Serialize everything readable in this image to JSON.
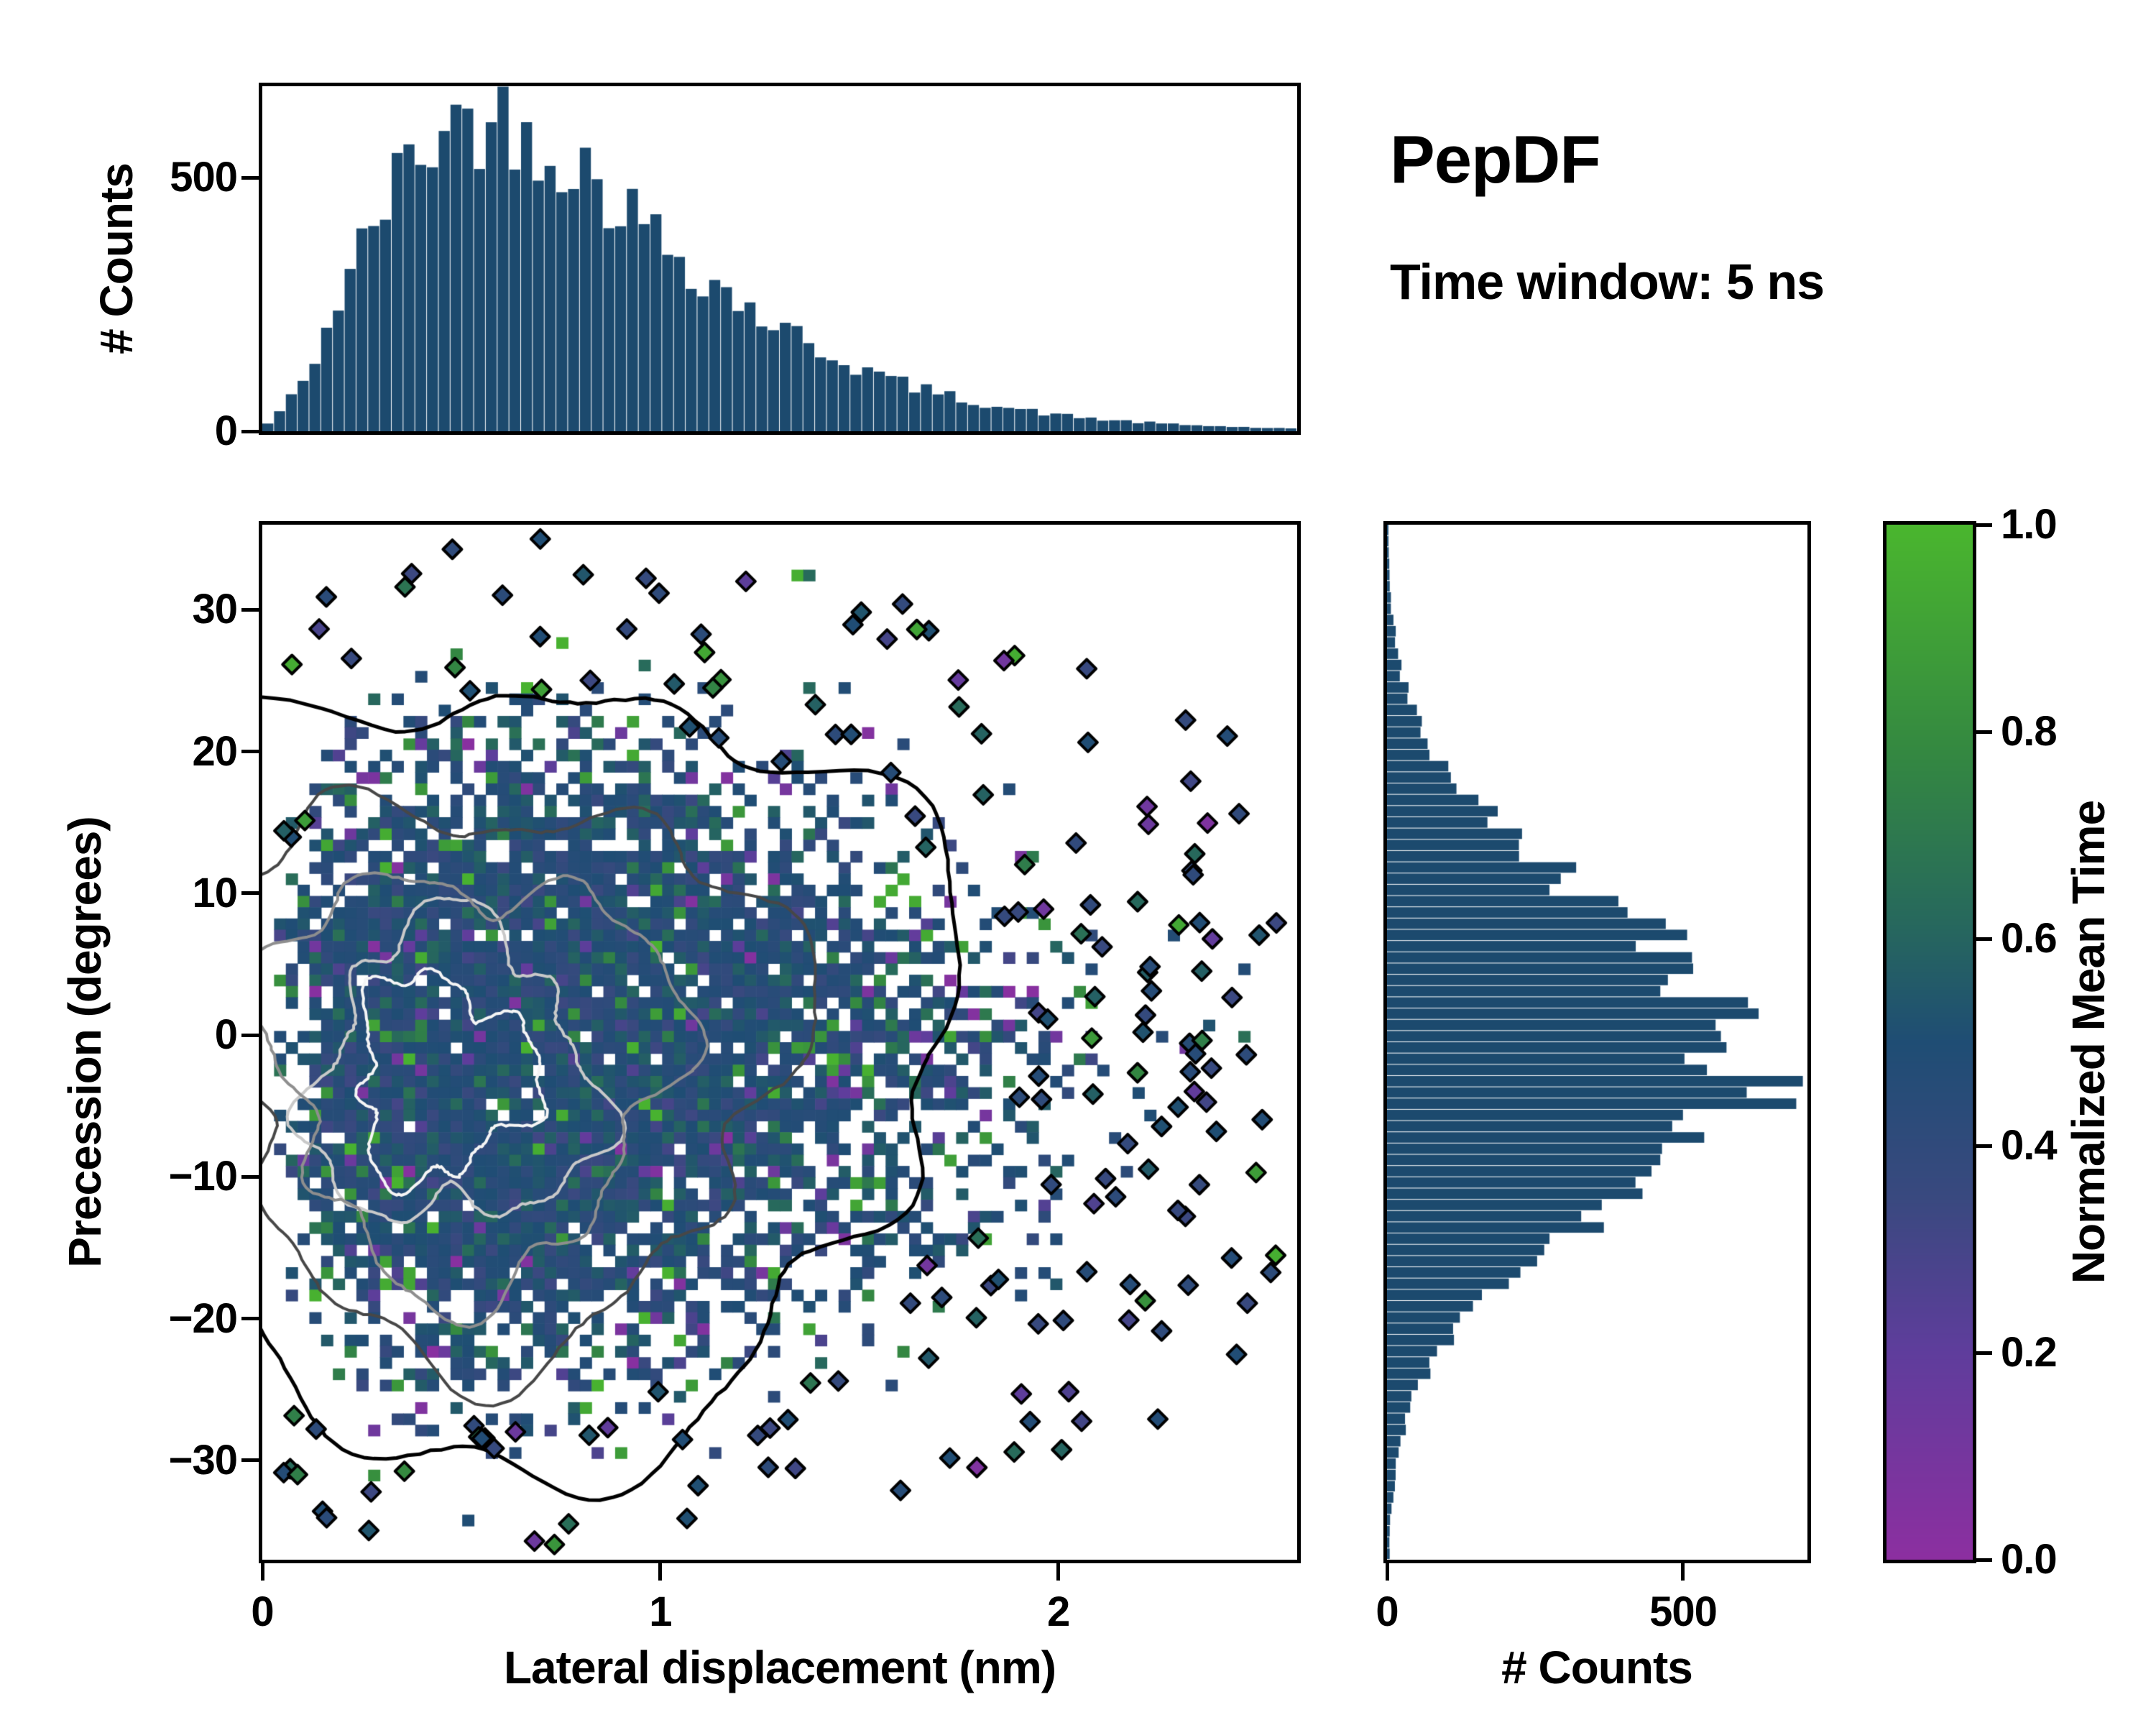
{
  "header": {
    "title": "PepDF",
    "subtitle": "Time window: 5 ns"
  },
  "chart_data": {
    "type": "heatmap",
    "seed": 42,
    "colormap": {
      "label": "Normalized Mean Time",
      "range": [
        0,
        1
      ],
      "ticks": {
        "values": [
          0,
          0.2,
          0.4,
          0.6,
          0.8,
          1.0
        ],
        "labels": [
          "0.0",
          "0.2",
          "0.4",
          "0.6",
          "0.8",
          "1.0"
        ]
      },
      "stops": [
        [
          0,
          "#8c2fa0"
        ],
        [
          0.2,
          "#5f3d9c"
        ],
        [
          0.35,
          "#39497f"
        ],
        [
          0.5,
          "#1f4d74"
        ],
        [
          0.62,
          "#27695c"
        ],
        [
          0.78,
          "#348841"
        ],
        [
          1,
          "#4ab62e"
        ]
      ]
    },
    "main_heatmap": {
      "type": "heatmap",
      "xlabel": "Lateral displacement (nm)",
      "ylabel": "Precession (degrees)",
      "xlim": [
        0,
        2.6
      ],
      "ylim": [
        -37,
        36
      ],
      "xticks": {
        "values": [
          0,
          1,
          2
        ],
        "labels": [
          "0",
          "1",
          "2"
        ]
      },
      "yticks": {
        "values": [
          30,
          20,
          10,
          0,
          -10,
          -20,
          -30
        ],
        "labels": [
          "30",
          "20",
          "10",
          "0",
          "−10",
          "−20",
          "−30"
        ]
      },
      "grid_bins": [
        88,
        92
      ],
      "x_distribution": {
        "type": "gamma",
        "shape_exp": 2.2,
        "scale": 0.25,
        "mode_nm": 0.55
      },
      "y_distribution": {
        "type": "gaussian",
        "mean": -1.5,
        "sigma": 10.5
      },
      "cell_value_mean": 0.47,
      "cell_value_sd": 0.07,
      "outlier_fraction": 0.08,
      "fill_lambda": 8,
      "contours": [
        {
          "level": "core",
          "color": "#f5f5f5",
          "cx": 0.45,
          "cy": -3.0,
          "rx": 0.22,
          "ry": 7.0,
          "wobble": 0.34,
          "width": 4
        },
        {
          "level": "high",
          "color": "#c9c9c9",
          "cx": 0.48,
          "cy": -3.0,
          "rx": 0.35,
          "ry": 10.5,
          "wobble": 0.3,
          "width": 4
        },
        {
          "level": "mid",
          "color": "#8e8e8e",
          "cx": 0.52,
          "cy": -2.5,
          "rx": 0.5,
          "ry": 14.5,
          "wobble": 0.27,
          "width": 4
        },
        {
          "level": "low",
          "color": "#474747",
          "cx": 0.58,
          "cy": -2.0,
          "rx": 0.73,
          "ry": 19.5,
          "wobble": 0.24,
          "width": 4
        },
        {
          "level": "outer",
          "color": "#000000",
          "cx": 0.68,
          "cy": -1.5,
          "rx": 1.02,
          "ry": 27.5,
          "wobble": 0.2,
          "width": 5
        }
      ],
      "outlier_markers": {
        "count": 150,
        "extra_right_band": 25,
        "stroke": "#000000"
      }
    },
    "top_histogram": {
      "type": "bar",
      "ylabel": "# Counts",
      "yticks": {
        "values": [
          0,
          500
        ],
        "labels": [
          "0",
          "500"
        ]
      },
      "ylim": [
        0,
        680
      ],
      "bins": 88,
      "bar_color": "#1c4a6e",
      "x_start": 0,
      "x_step": 0.1,
      "envelope_counts": [
        2,
        88,
        271,
        441,
        561,
        614,
        615,
        579,
        521,
        452,
        382,
        315,
        256,
        205,
        162,
        126,
        97,
        74,
        57,
        43,
        32,
        24,
        18,
        13,
        10,
        7,
        5,
        4
      ]
    },
    "right_histogram": {
      "type": "bar",
      "xlabel": "# Counts",
      "xticks": {
        "values": [
          0,
          500
        ],
        "labels": [
          "0",
          "500"
        ]
      },
      "xlim": [
        0,
        710
      ],
      "bins": 92,
      "bar_color": "#1c4a6e",
      "y_start": -35,
      "y_step": 5,
      "envelope_counts": [
        4,
        16,
        51,
        131,
        271,
        447,
        587,
        614,
        512,
        340,
        180,
        76,
        26,
        7,
        2
      ]
    }
  }
}
